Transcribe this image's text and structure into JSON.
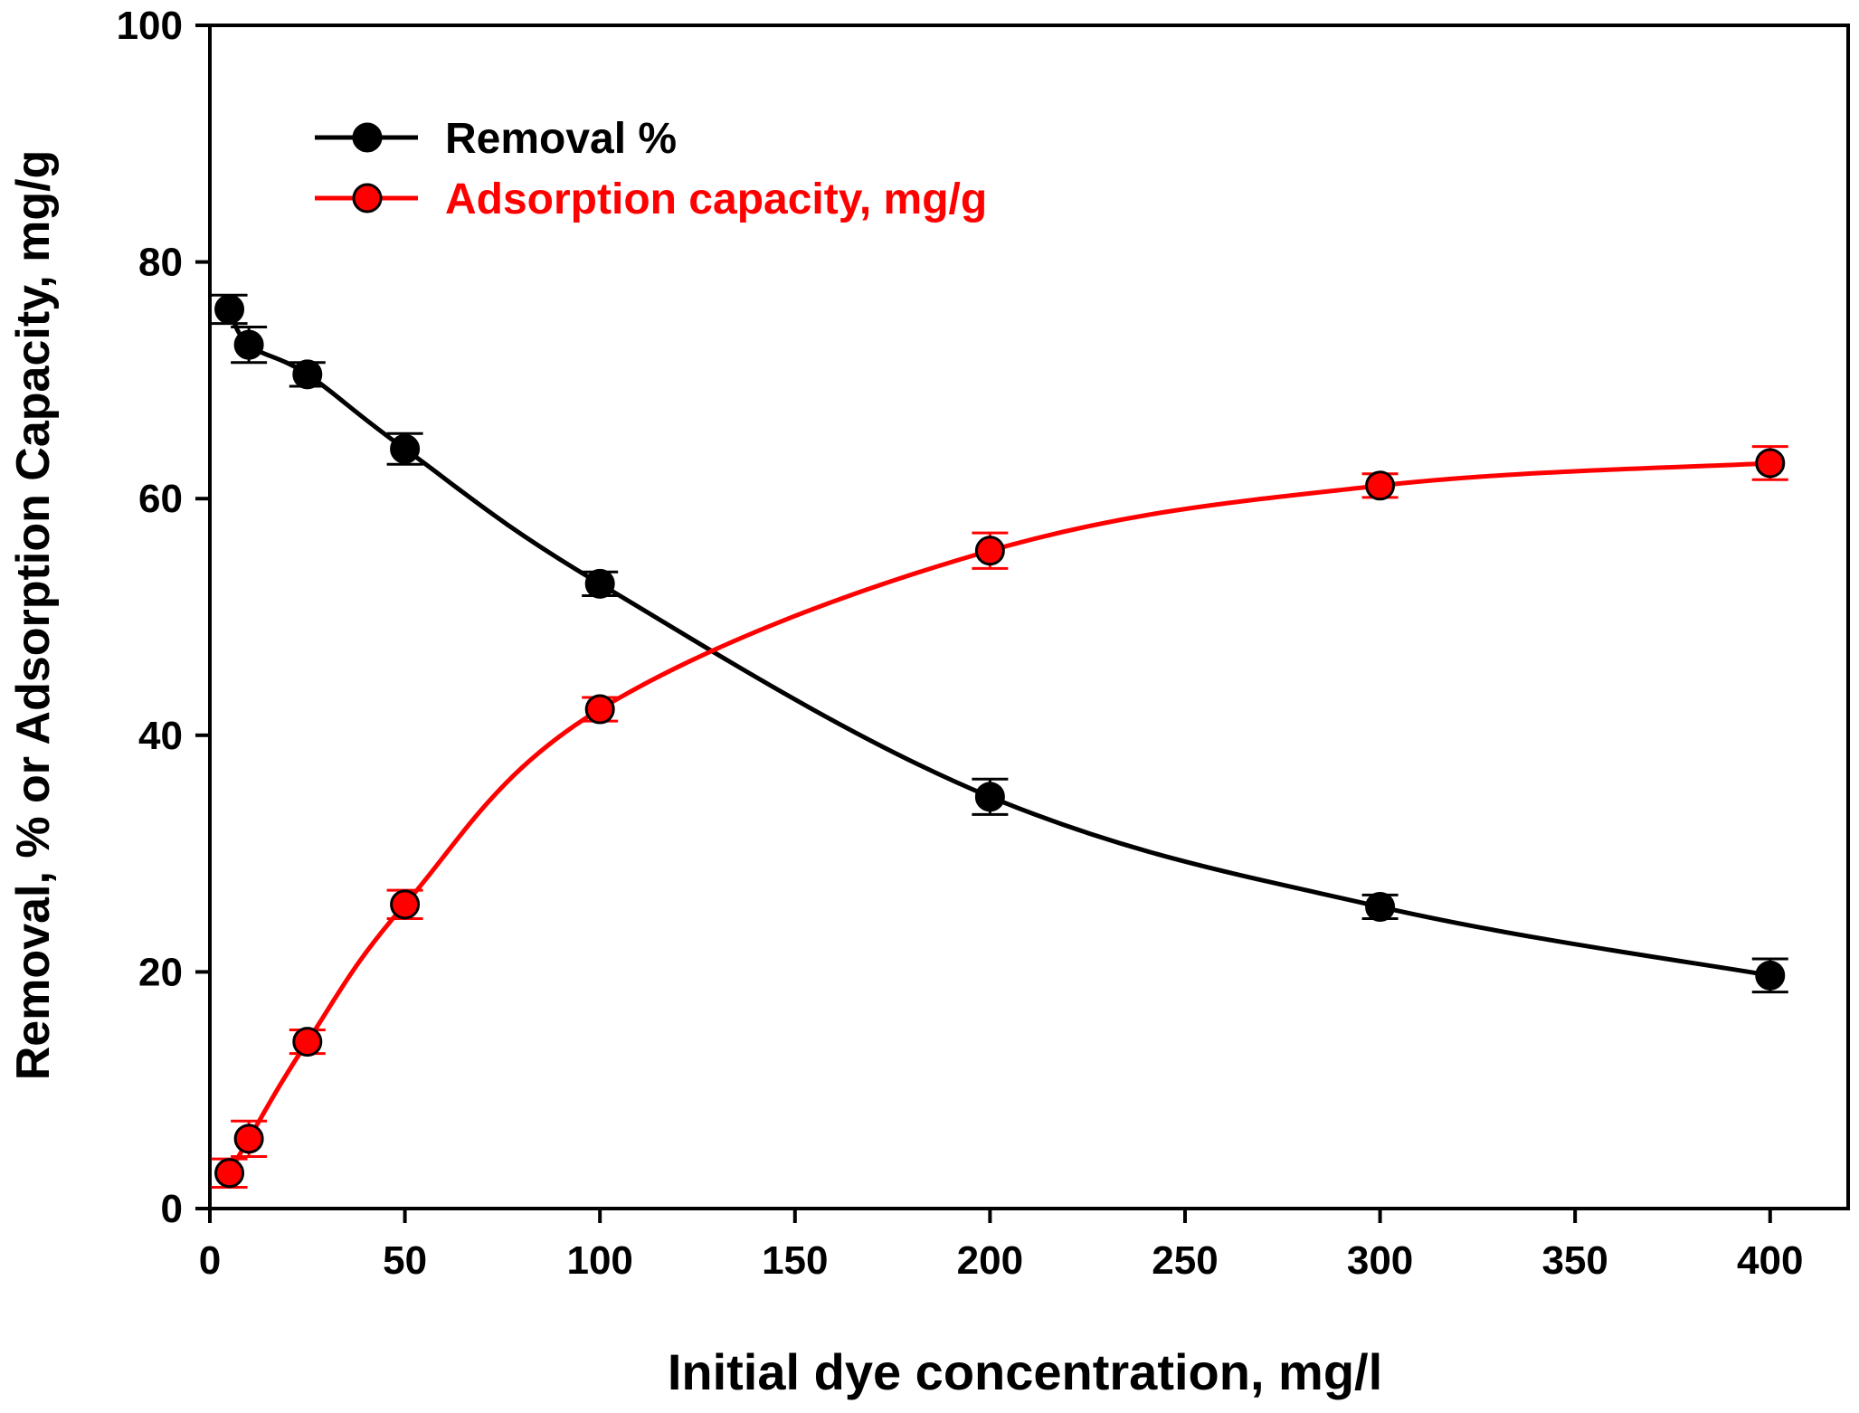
{
  "chart_data": {
    "type": "line",
    "title": "",
    "xlabel": "Initial dye concentration, mg/l",
    "ylabel": "Removal, % or Adsorption Capacity, mg/g",
    "xlim": [
      0,
      420
    ],
    "ylim": [
      0,
      100
    ],
    "x_ticks": [
      0,
      50,
      100,
      150,
      200,
      250,
      300,
      350,
      400
    ],
    "y_ticks": [
      0,
      20,
      40,
      60,
      80,
      100
    ],
    "grid": false,
    "legend_position": "top-left",
    "x": [
      5,
      10,
      25,
      50,
      100,
      200,
      300,
      400
    ],
    "series": [
      {
        "name": "Removal %",
        "color": "#000000",
        "marker_fill": "#000000",
        "values": [
          76,
          73,
          70.5,
          64.2,
          52.8,
          34.8,
          25.5,
          19.7
        ],
        "errors": [
          1.2,
          1.5,
          1.0,
          1.3,
          1.0,
          1.5,
          1.0,
          1.4
        ]
      },
      {
        "name": "Adsorption capacity, mg/g",
        "color": "#ff0000",
        "marker_fill": "#ff0000",
        "values": [
          3.0,
          5.9,
          14.1,
          25.7,
          42.2,
          55.6,
          61.1,
          63.0
        ],
        "errors": [
          1.2,
          1.5,
          1.0,
          1.2,
          1.0,
          1.5,
          1.0,
          1.4
        ]
      }
    ]
  }
}
